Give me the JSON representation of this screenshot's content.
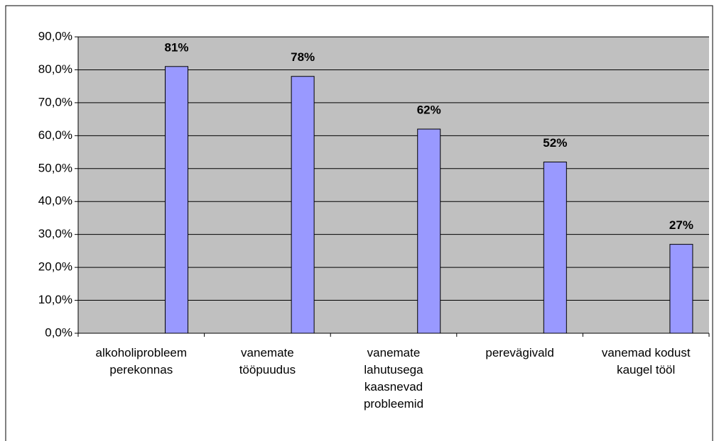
{
  "chart_data": {
    "type": "bar",
    "categories": [
      "alkoholiprobleem perekonnas",
      "vanemate tööpuudus",
      "vanemate lahutusega kaasnevad probleemid",
      "perevägivald",
      "vanemad kodust kaugel tööl"
    ],
    "values": [
      81,
      78,
      62,
      52,
      27
    ],
    "value_labels": [
      "81%",
      "78%",
      "62%",
      "52%",
      "27%"
    ],
    "color": "#9999ff",
    "ylim": [
      0,
      90
    ],
    "yticks": [
      {
        "value": 0,
        "label": "0,0%"
      },
      {
        "value": 10,
        "label": "10,0%"
      },
      {
        "value": 20,
        "label": "20,0%"
      },
      {
        "value": 30,
        "label": "30,0%"
      },
      {
        "value": 40,
        "label": "40,0%"
      },
      {
        "value": 50,
        "label": "50,0%"
      },
      {
        "value": 60,
        "label": "60,0%"
      },
      {
        "value": 70,
        "label": "70,0%"
      },
      {
        "value": 80,
        "label": "80,0%"
      },
      {
        "value": 90,
        "label": "90,0%"
      }
    ],
    "grid": true
  }
}
